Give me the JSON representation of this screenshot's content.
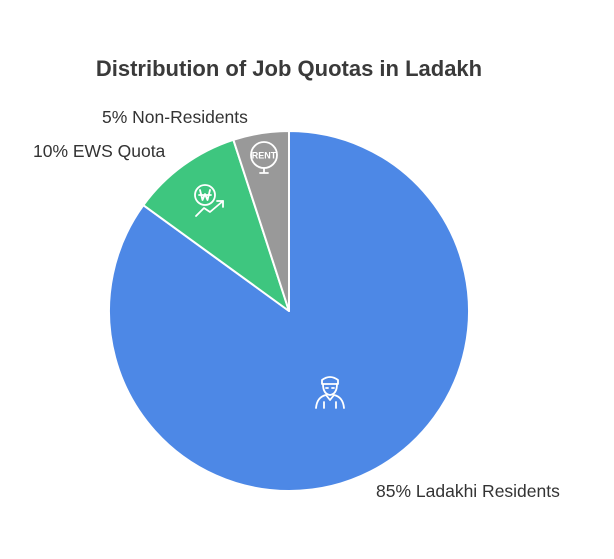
{
  "chart_data": {
    "type": "pie",
    "title": "Distribution of Job Quotas in Ladakh",
    "slices": [
      {
        "label": "85% Ladakhi Residents",
        "value": 85,
        "color": "#4d88e6",
        "icon": "person-with-cap-icon"
      },
      {
        "label": "10% EWS Quota",
        "value": 10,
        "color": "#3ec67f",
        "icon": "won-growth-icon"
      },
      {
        "label": "5% Non-Residents",
        "value": 5,
        "color": "#999999",
        "icon": "rent-sign-icon"
      }
    ],
    "start": "top, clockwise"
  }
}
